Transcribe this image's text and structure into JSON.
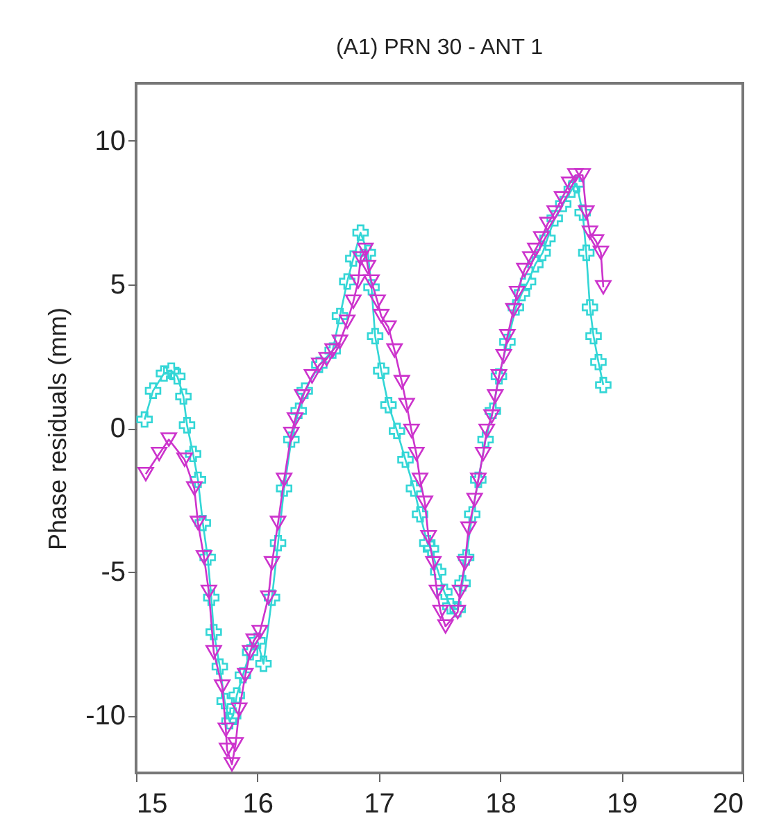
{
  "chart_data": {
    "type": "line",
    "title": "(A1) PRN 30 - ANT 1",
    "ylabel": "Phase residuals (mm)",
    "xlim": [
      15,
      20
    ],
    "xticks": [
      15,
      16,
      17,
      18,
      19,
      20
    ],
    "ylim": [
      -12,
      12
    ],
    "yticks": [
      -10,
      -5,
      0,
      5,
      10
    ],
    "line_style": "solid",
    "series": [
      {
        "color": "#33d6d6",
        "marker": "cross",
        "x": [
          15.07,
          15.14,
          15.23,
          15.29,
          15.34,
          15.39,
          15.42,
          15.47,
          15.51,
          15.55,
          15.59,
          15.62,
          15.64,
          15.69,
          15.73,
          15.77,
          15.8,
          15.83,
          15.88,
          15.94,
          16.0,
          16.05,
          16.12,
          16.17,
          16.22,
          16.28,
          16.34,
          16.39,
          16.51,
          16.62,
          16.68,
          16.74,
          16.79,
          16.85,
          16.91,
          16.94,
          16.97,
          17.02,
          17.08,
          17.15,
          17.22,
          17.29,
          17.34,
          17.4,
          17.43,
          17.49,
          17.54,
          17.59,
          17.65,
          17.69,
          17.72,
          17.77,
          17.82,
          17.88,
          17.94,
          17.99,
          18.06,
          18.13,
          18.18,
          18.23,
          18.29,
          18.35,
          18.39,
          18.45,
          18.52,
          18.59,
          18.63,
          18.68,
          18.71,
          18.74,
          18.77,
          18.81,
          18.85
        ],
        "values": [
          0.3,
          1.3,
          1.9,
          2.0,
          1.8,
          1.1,
          0.1,
          -0.9,
          -1.8,
          -3.3,
          -4.5,
          -5.9,
          -7.1,
          -8.3,
          -9.5,
          -10.2,
          -10.0,
          -9.3,
          -8.6,
          -7.8,
          -7.4,
          -8.2,
          -5.9,
          -4.0,
          -2.1,
          -0.4,
          0.6,
          1.3,
          2.2,
          2.7,
          3.9,
          5.1,
          5.9,
          6.8,
          6.1,
          4.9,
          3.2,
          2.0,
          0.8,
          -0.1,
          -1.1,
          -2.1,
          -3.0,
          -4.0,
          -4.2,
          -5.0,
          -5.7,
          -6.2,
          -6.3,
          -5.4,
          -4.5,
          -3.0,
          -1.8,
          -0.4,
          0.6,
          1.8,
          3.0,
          4.2,
          4.7,
          5.1,
          5.7,
          6.1,
          6.6,
          7.3,
          7.8,
          8.3,
          8.5,
          7.5,
          6.1,
          4.2,
          3.2,
          2.3,
          1.5
        ]
      },
      {
        "color": "#cc33cc",
        "marker": "triangle",
        "x": [
          15.08,
          15.19,
          15.27,
          15.4,
          15.48,
          15.51,
          15.56,
          15.6,
          15.64,
          15.71,
          15.74,
          15.75,
          15.79,
          15.82,
          15.85,
          15.9,
          15.94,
          15.97,
          16.02,
          16.09,
          16.12,
          16.17,
          16.22,
          16.28,
          16.31,
          16.37,
          16.45,
          16.51,
          16.57,
          16.62,
          16.68,
          16.74,
          16.79,
          16.83,
          16.85,
          16.89,
          16.91,
          16.94,
          16.99,
          17.02,
          17.08,
          17.13,
          17.19,
          17.23,
          17.27,
          17.31,
          17.34,
          17.38,
          17.41,
          17.45,
          17.48,
          17.51,
          17.55,
          17.65,
          17.67,
          17.71,
          17.74,
          17.79,
          17.82,
          17.86,
          17.89,
          17.93,
          17.96,
          17.99,
          18.03,
          18.06,
          18.11,
          18.14,
          18.2,
          18.25,
          18.29,
          18.34,
          18.39,
          18.45,
          18.51,
          18.57,
          18.62,
          18.68,
          18.71,
          18.74,
          18.79,
          18.83,
          18.85
        ],
        "values": [
          -1.6,
          -0.9,
          -0.4,
          -1.1,
          -2.1,
          -3.3,
          -4.5,
          -5.7,
          -7.8,
          -9.0,
          -10.5,
          -11.2,
          -11.7,
          -11.0,
          -9.8,
          -8.6,
          -7.8,
          -7.4,
          -7.1,
          -5.9,
          -4.7,
          -3.3,
          -1.8,
          -0.2,
          0.3,
          1.1,
          1.8,
          2.2,
          2.4,
          2.7,
          3.0,
          3.7,
          4.4,
          5.1,
          5.9,
          6.2,
          5.6,
          5.1,
          4.4,
          3.9,
          3.5,
          2.7,
          1.6,
          0.8,
          -0.1,
          -0.9,
          -1.8,
          -2.6,
          -3.8,
          -4.7,
          -5.7,
          -6.4,
          -6.9,
          -6.4,
          -5.7,
          -4.7,
          -3.5,
          -2.5,
          -1.8,
          -0.9,
          -0.1,
          0.4,
          1.1,
          1.8,
          2.5,
          3.2,
          4.1,
          4.7,
          5.5,
          5.9,
          6.2,
          6.6,
          7.1,
          7.5,
          8.0,
          8.5,
          8.8,
          8.8,
          7.5,
          6.8,
          6.5,
          6.1,
          4.9
        ]
      }
    ]
  }
}
